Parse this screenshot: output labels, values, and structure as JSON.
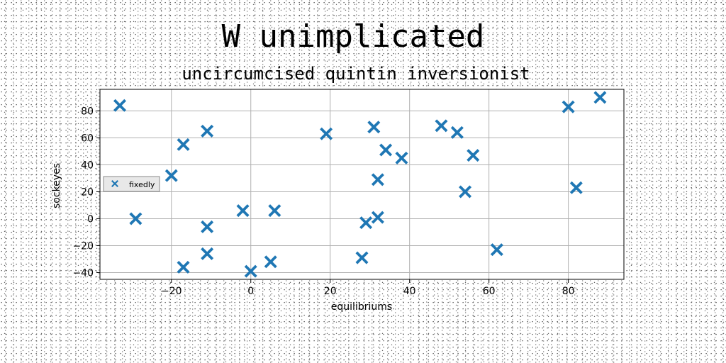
{
  "chart_data": {
    "type": "scatter",
    "title": "W unimplicated",
    "subtitle": "uncircumcised quintin inversionist",
    "xlabel": "equilibriums",
    "ylabel": "sockeyes",
    "xlim": [
      -38,
      94
    ],
    "ylim": [
      -45,
      96
    ],
    "xticks": [
      -20,
      0,
      20,
      40,
      60,
      80
    ],
    "yticks": [
      -40,
      -20,
      0,
      20,
      40,
      60,
      80
    ],
    "grid": true,
    "legend_position": "center-left",
    "series": [
      {
        "name": "fixedly",
        "marker": "x-filled",
        "color": "#1f77b4",
        "points": [
          [
            -33,
            84
          ],
          [
            -29,
            0
          ],
          [
            -20,
            32
          ],
          [
            -17,
            55
          ],
          [
            -17,
            -36
          ],
          [
            -11,
            65
          ],
          [
            -11,
            -6
          ],
          [
            -11,
            -26
          ],
          [
            -2,
            6
          ],
          [
            0,
            -39
          ],
          [
            5,
            -32
          ],
          [
            6,
            6
          ],
          [
            19,
            63
          ],
          [
            28,
            -29
          ],
          [
            29,
            -3
          ],
          [
            31,
            68
          ],
          [
            32,
            1
          ],
          [
            32,
            29
          ],
          [
            34,
            51
          ],
          [
            38,
            45
          ],
          [
            48,
            69
          ],
          [
            52,
            64
          ],
          [
            54,
            20
          ],
          [
            56,
            47
          ],
          [
            62,
            -23
          ],
          [
            80,
            83
          ],
          [
            82,
            23
          ],
          [
            88,
            90
          ]
        ]
      }
    ]
  }
}
